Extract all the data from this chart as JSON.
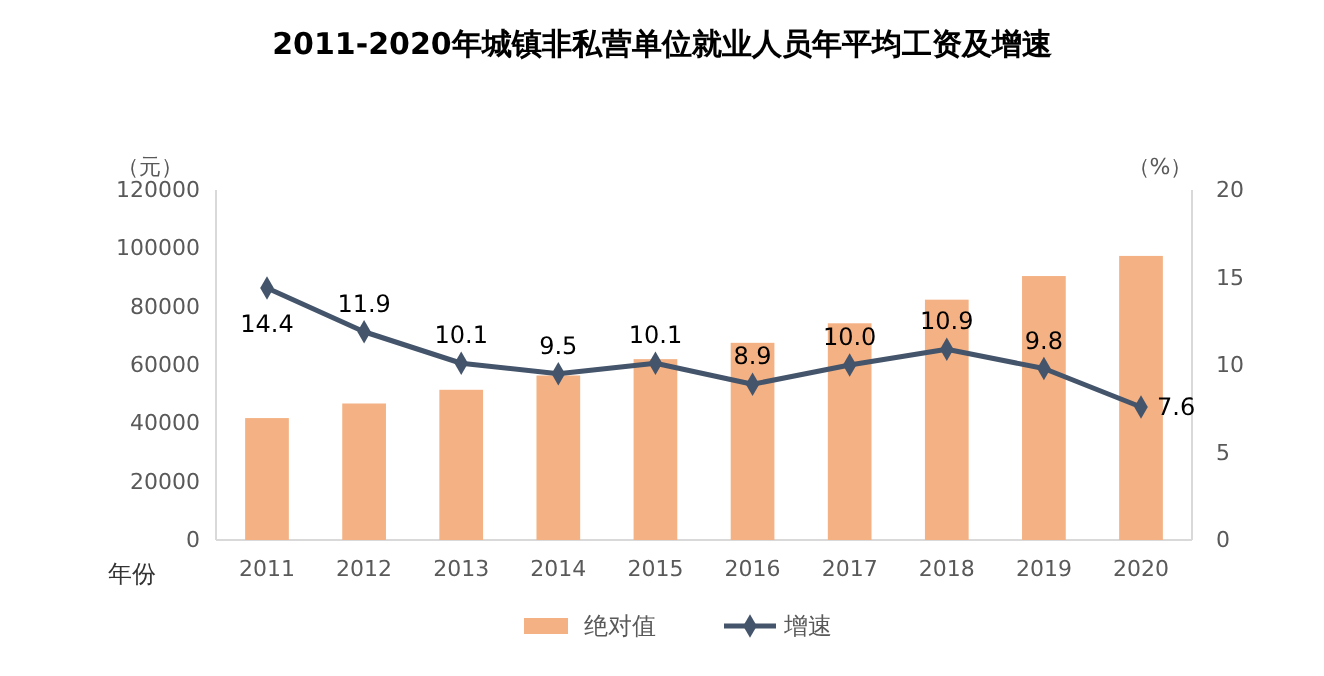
{
  "chart_data": {
    "type": "bar",
    "title": "2011-2020年城镇非私营单位就业人员年平均工资及增速",
    "xlabel": "年份",
    "ylabel": "（元）",
    "y2label": "（%）",
    "categories": [
      "2011",
      "2012",
      "2013",
      "2014",
      "2015",
      "2016",
      "2017",
      "2018",
      "2019",
      "2020"
    ],
    "series": [
      {
        "name": "绝对值",
        "color": "#f4b183",
        "values": [
          41800,
          46800,
          51500,
          56400,
          62000,
          67600,
          74300,
          82400,
          90500,
          97400
        ]
      },
      {
        "name": "增速",
        "type": "line",
        "axis": "y2",
        "color": "#44546a",
        "marker": "diamond",
        "values": [
          14.4,
          11.9,
          10.1,
          9.5,
          10.1,
          8.9,
          10.0,
          10.9,
          9.8,
          7.6
        ],
        "value_labels": [
          "14.4",
          "11.9",
          "10.1",
          "9.5",
          "10.1",
          "8.9",
          "10.0",
          "10.9",
          "9.8",
          "7.6"
        ]
      }
    ],
    "ylim": [
      0,
      120000
    ],
    "yticks": [
      0,
      20000,
      40000,
      60000,
      80000,
      100000,
      120000
    ],
    "y2lim": [
      0,
      20
    ],
    "y2ticks": [
      0,
      5,
      10,
      15,
      20
    ],
    "grid": false,
    "legend": "bottom"
  }
}
